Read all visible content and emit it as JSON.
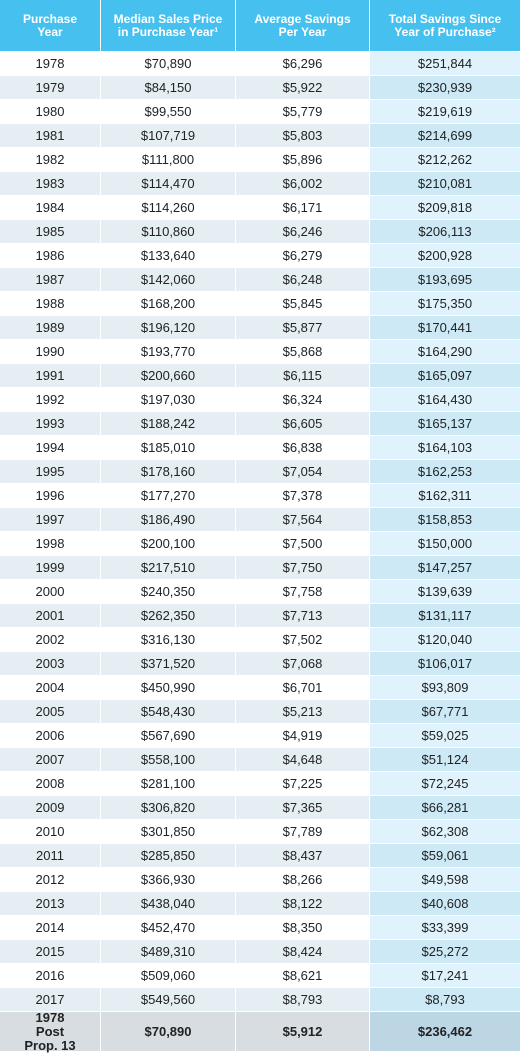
{
  "table": {
    "header": [
      "Purchase Year",
      "Median Sales Price in Purchase Year¹",
      "Average Savings Per Year",
      "Total Savings Since Year of Purchase²"
    ],
    "rows": [
      [
        "1978",
        "$70,890",
        "$6,296",
        "$251,844"
      ],
      [
        "1979",
        "$84,150",
        "$5,922",
        "$230,939"
      ],
      [
        "1980",
        "$99,550",
        "$5,779",
        "$219,619"
      ],
      [
        "1981",
        "$107,719",
        "$5,803",
        "$214,699"
      ],
      [
        "1982",
        "$111,800",
        "$5,896",
        "$212,262"
      ],
      [
        "1983",
        "$114,470",
        "$6,002",
        "$210,081"
      ],
      [
        "1984",
        "$114,260",
        "$6,171",
        "$209,818"
      ],
      [
        "1985",
        "$110,860",
        "$6,246",
        "$206,113"
      ],
      [
        "1986",
        "$133,640",
        "$6,279",
        "$200,928"
      ],
      [
        "1987",
        "$142,060",
        "$6,248",
        "$193,695"
      ],
      [
        "1988",
        "$168,200",
        "$5,845",
        "$175,350"
      ],
      [
        "1989",
        "$196,120",
        "$5,877",
        "$170,441"
      ],
      [
        "1990",
        "$193,770",
        "$5,868",
        "$164,290"
      ],
      [
        "1991",
        "$200,660",
        "$6,115",
        "$165,097"
      ],
      [
        "1992",
        "$197,030",
        "$6,324",
        "$164,430"
      ],
      [
        "1993",
        "$188,242",
        "$6,605",
        "$165,137"
      ],
      [
        "1994",
        "$185,010",
        "$6,838",
        "$164,103"
      ],
      [
        "1995",
        "$178,160",
        "$7,054",
        "$162,253"
      ],
      [
        "1996",
        "$177,270",
        "$7,378",
        "$162,311"
      ],
      [
        "1997",
        "$186,490",
        "$7,564",
        "$158,853"
      ],
      [
        "1998",
        "$200,100",
        "$7,500",
        "$150,000"
      ],
      [
        "1999",
        "$217,510",
        "$7,750",
        "$147,257"
      ],
      [
        "2000",
        "$240,350",
        "$7,758",
        "$139,639"
      ],
      [
        "2001",
        "$262,350",
        "$7,713",
        "$131,117"
      ],
      [
        "2002",
        "$316,130",
        "$7,502",
        "$120,040"
      ],
      [
        "2003",
        "$371,520",
        "$7,068",
        "$106,017"
      ],
      [
        "2004",
        "$450,990",
        "$6,701",
        "$93,809"
      ],
      [
        "2005",
        "$548,430",
        "$5,213",
        "$67,771"
      ],
      [
        "2006",
        "$567,690",
        "$4,919",
        "$59,025"
      ],
      [
        "2007",
        "$558,100",
        "$4,648",
        "$51,124"
      ],
      [
        "2008",
        "$281,100",
        "$7,225",
        "$72,245"
      ],
      [
        "2009",
        "$306,820",
        "$7,365",
        "$66,281"
      ],
      [
        "2010",
        "$301,850",
        "$7,789",
        "$62,308"
      ],
      [
        "2011",
        "$285,850",
        "$8,437",
        "$59,061"
      ],
      [
        "2012",
        "$366,930",
        "$8,266",
        "$49,598"
      ],
      [
        "2013",
        "$438,040",
        "$8,122",
        "$40,608"
      ],
      [
        "2014",
        "$452,470",
        "$8,350",
        "$33,399"
      ],
      [
        "2015",
        "$489,310",
        "$8,424",
        "$25,272"
      ],
      [
        "2016",
        "$509,060",
        "$8,621",
        "$17,241"
      ],
      [
        "2017",
        "$549,560",
        "$8,793",
        "$8,793"
      ]
    ],
    "footer": [
      "1978 Post Prop. 13",
      "$70,890",
      "$5,912",
      "$236,462"
    ]
  }
}
